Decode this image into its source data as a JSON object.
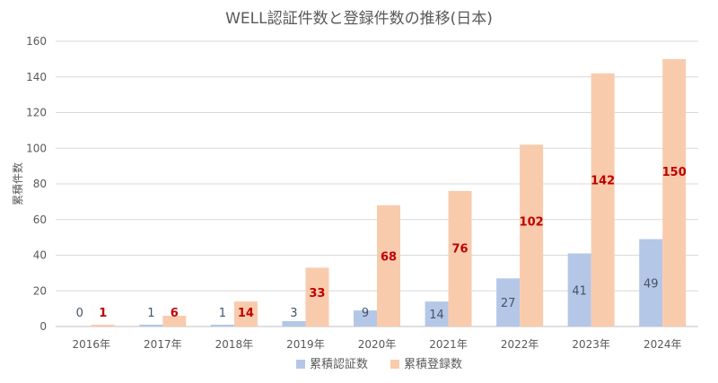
{
  "chart_data": {
    "type": "bar",
    "title": "WELL認証件数と登録件数の推移(日本)",
    "ylabel": "累積件数",
    "xlabel": "",
    "ylim": [
      0,
      160
    ],
    "yticks": [
      0,
      20,
      40,
      60,
      80,
      100,
      120,
      140,
      160
    ],
    "categories": [
      "2016年",
      "2017年",
      "2018年",
      "2019年",
      "2020年",
      "2021年",
      "2022年",
      "2023年",
      "2024年"
    ],
    "series": [
      {
        "name": "累積認証数",
        "values": [
          0,
          1,
          1,
          3,
          9,
          14,
          27,
          41,
          49
        ],
        "color": "#b4c7e7",
        "label_color": "#44546a"
      },
      {
        "name": "累積登録数",
        "values": [
          1,
          6,
          14,
          33,
          68,
          76,
          102,
          142,
          150
        ],
        "color": "#f8cbad",
        "label_color": "#c00000"
      }
    ],
    "grid": true,
    "legend": "bottom"
  }
}
